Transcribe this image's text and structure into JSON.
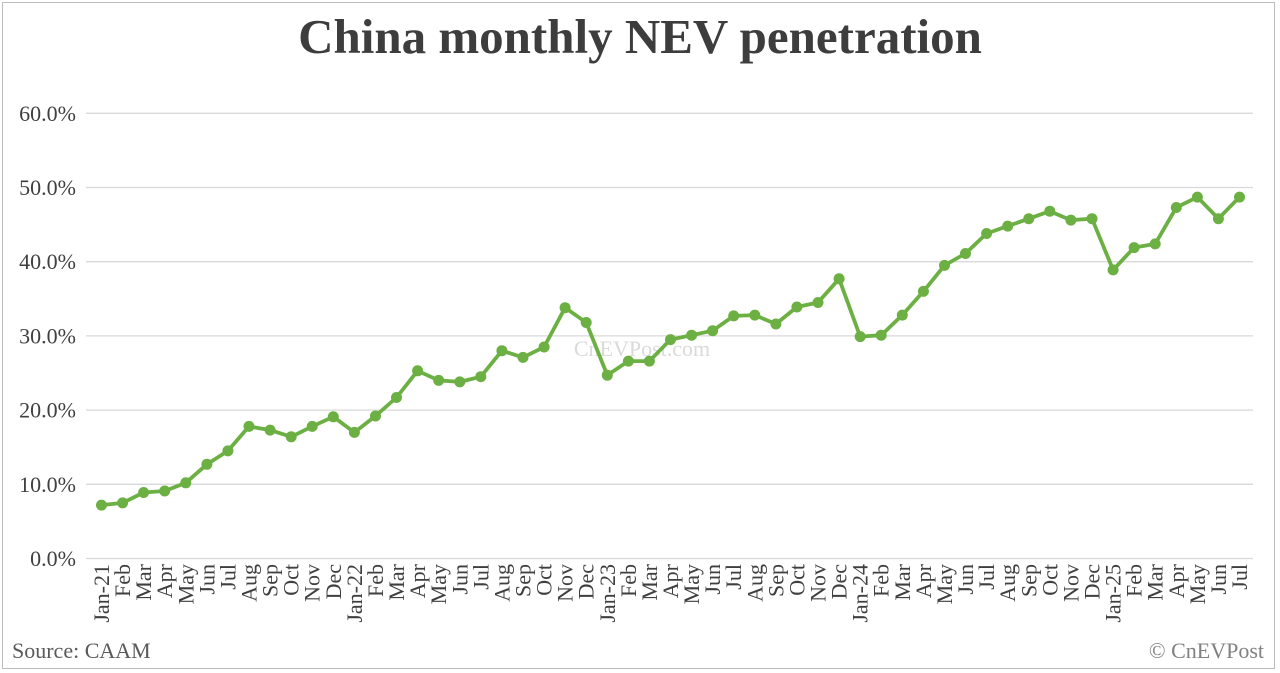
{
  "title": "China monthly NEV penetration",
  "watermark": "CnEVPost.com",
  "footer": {
    "source": "Source: CAAM",
    "copyright": "© CnEVPost"
  },
  "chart_data": {
    "type": "line",
    "title": "China monthly NEV penetration",
    "xlabel": "",
    "ylabel": "",
    "ylim": [
      0,
      60
    ],
    "grid": "horizontal",
    "legend": "none",
    "ytick_values": [
      0,
      10,
      20,
      30,
      40,
      50,
      60
    ],
    "ytick_labels": [
      "0.0%",
      "10.0%",
      "20.0%",
      "30.0%",
      "40.0%",
      "50.0%",
      "60.0%"
    ],
    "categories": [
      "Jan-21",
      "Feb",
      "Mar",
      "Apr",
      "May",
      "Jun",
      "Jul",
      "Aug",
      "Sep",
      "Oct",
      "Nov",
      "Dec",
      "Jan-22",
      "Feb",
      "Mar",
      "Apr",
      "May",
      "Jun",
      "Jul",
      "Aug",
      "Sep",
      "Oct",
      "Nov",
      "Dec",
      "Jan-23",
      "Feb",
      "Mar",
      "Apr",
      "May",
      "Jun",
      "Jul",
      "Aug",
      "Sep",
      "Oct",
      "Nov",
      "Dec",
      "Jan-24",
      "Feb",
      "Mar",
      "Apr",
      "May",
      "Jun",
      "Jul",
      "Aug",
      "Sep",
      "Oct",
      "Nov",
      "Dec",
      "Jan-25",
      "Feb",
      "Mar",
      "Apr",
      "May",
      "Jun",
      "Jul"
    ],
    "series": [
      {
        "name": "NEV penetration (%)",
        "values": [
          7.2,
          7.5,
          8.9,
          9.1,
          10.2,
          12.7,
          14.5,
          17.8,
          17.3,
          16.4,
          17.8,
          19.1,
          17.0,
          19.2,
          21.7,
          25.3,
          24.0,
          23.8,
          24.5,
          28.0,
          27.1,
          28.5,
          33.8,
          31.8,
          24.7,
          26.6,
          26.6,
          29.5,
          30.1,
          30.7,
          32.7,
          32.8,
          31.6,
          33.9,
          34.5,
          37.7,
          29.9,
          30.1,
          32.8,
          36.0,
          39.5,
          41.1,
          43.8,
          44.8,
          45.8,
          46.8,
          45.6,
          45.8,
          38.9,
          41.9,
          42.4,
          47.3,
          48.7,
          45.8,
          48.7
        ]
      }
    ],
    "colors": {
      "series": "#6cb043",
      "grid": "#d9d9d9",
      "axis_text": "#3f3f3f",
      "watermark": "#dadada"
    }
  }
}
